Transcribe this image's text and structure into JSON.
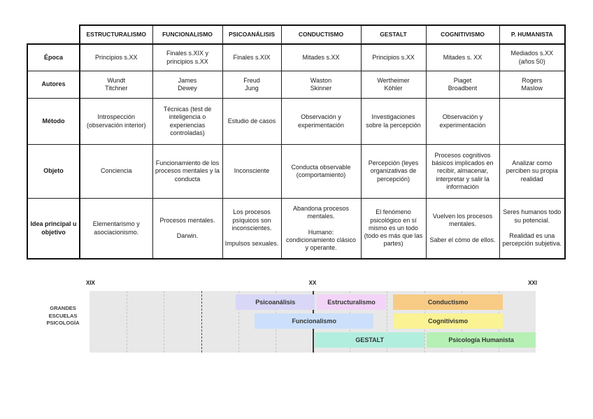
{
  "table": {
    "columns": [
      "ESTRUCTURALISMO",
      "FUNCIONALISMO",
      "PSICOANÁLISIS",
      "CONDUCTISMO",
      "GESTALT",
      "COGNITIVISMO",
      "P. HUMANISTA"
    ],
    "rows": [
      {
        "label": "Época",
        "cells": [
          "Principios s.XX",
          "Finales s.XIX y principios s.XX",
          "Finales s.XIX",
          "Mitades s.XX",
          "Principios s.XX",
          "Mitades s. XX",
          "Mediados s.XX\n(años 50)"
        ]
      },
      {
        "label": "Autores",
        "cells": [
          "Wundt\nTitchner",
          "James\nDewey",
          "Freud\nJung",
          "Waston\nSkinner",
          "Wertheimer\nKöhler",
          "Piaget\nBroadbent",
          "Rogers\nMaslow"
        ]
      },
      {
        "label": "Método",
        "cells": [
          "Introspección (observación interior)",
          "Técnicas (test de inteligencia o experiencias controladas)",
          "Estudio de casos",
          "Observación y experimentación",
          "Investigaciones sobre la percepción",
          "Observación y experimentación",
          ""
        ]
      },
      {
        "label": "Objeto",
        "cells": [
          "Conciencia",
          "Funcionamiento de los procesos mentales y la conducta",
          "Inconsciente",
          "Conducta observable (comportamiento)",
          "Percepción (leyes organizativas de percepción)",
          "Procesos cognitivos básicos implicados en recibir, almacenar, interpretar y salir la información",
          "Analizar como perciben su propia realidad"
        ]
      },
      {
        "label": "Idea principal u objetivo",
        "cells": [
          "Elementarismo y asociacionismo.",
          "Procesos mentales.\n\nDarwin.",
          "Los procesos psíquicos son inconscientes.\n\nImpulsos sexuales.",
          "Abandona procesos mentales.\n\nHumano: condicionamiento clásico y operante.",
          "El fenómeno psicológico en sí mismo es un todo (todo es más que las partes)",
          "Vuelven los procesos mentales.\n\nSaber el cómo de ellos.",
          "Seres humanos todo su potencial.\n\nRealidad es una percepción subjetiva."
        ]
      }
    ]
  },
  "timeline": {
    "left_label": "GRANDES\nESCUELAS\nPSICOLOGÍA",
    "ticks": [
      {
        "label": "XIX",
        "pos_pct": 0
      },
      {
        "label": "XX",
        "pos_pct": 50
      },
      {
        "label": "XXI",
        "pos_pct": 100
      }
    ],
    "axis": {
      "divisions": 12,
      "dark_division": 3,
      "solid_division": 6
    },
    "colors": {
      "plot_background": "#e8e8e8"
    },
    "bars": [
      {
        "id": "psicoanalisis",
        "label": "Psicoanálisis",
        "row": 0,
        "start_pct": 32.8,
        "end_pct": 50.5,
        "color": "#d9d7f7"
      },
      {
        "id": "estructuralismo",
        "label": "Estructuralismo",
        "row": 0,
        "start_pct": 50.9,
        "end_pct": 66.5,
        "color": "#f3d4f8"
      },
      {
        "id": "conductismo",
        "label": "Conductismo",
        "row": 0,
        "start_pct": 68.0,
        "end_pct": 92.7,
        "color": "#f8cb85"
      },
      {
        "id": "funcionalismo",
        "label": "Funcionalismo",
        "row": 1,
        "start_pct": 37.0,
        "end_pct": 63.7,
        "color": "#cce0fb"
      },
      {
        "id": "cognitivismo",
        "label": "Cognitivismo",
        "row": 1,
        "start_pct": 68.0,
        "end_pct": 92.7,
        "color": "#faf293"
      },
      {
        "id": "gestalt",
        "label": "GESTALT",
        "row": 2,
        "start_pct": 50.5,
        "end_pct": 75.1,
        "color": "#b2eedd"
      },
      {
        "id": "psicologia-humanista",
        "label": "Psicología Humanista",
        "row": 2,
        "start_pct": 75.6,
        "end_pct": 100,
        "color": "#b6f0b4"
      }
    ]
  },
  "chart_data": {
    "type": "bar",
    "subtype": "gantt-timeline",
    "title": "GRANDES ESCUELAS PSICOLOGÍA",
    "x_tick_labels": [
      "XIX",
      "XX",
      "XXI"
    ],
    "x_range_pct": [
      0,
      100
    ],
    "grid": "dashed vertical, solid line at XX",
    "series": [
      {
        "name": "Psicoanálisis",
        "row": 1,
        "start_pct": 32.8,
        "end_pct": 50.5
      },
      {
        "name": "Estructuralismo",
        "row": 1,
        "start_pct": 50.9,
        "end_pct": 66.5
      },
      {
        "name": "Conductismo",
        "row": 1,
        "start_pct": 68.0,
        "end_pct": 92.7
      },
      {
        "name": "Funcionalismo",
        "row": 2,
        "start_pct": 37.0,
        "end_pct": 63.7
      },
      {
        "name": "Cognitivismo",
        "row": 2,
        "start_pct": 68.0,
        "end_pct": 92.7
      },
      {
        "name": "GESTALT",
        "row": 3,
        "start_pct": 50.5,
        "end_pct": 75.1
      },
      {
        "name": "Psicología Humanista",
        "row": 3,
        "start_pct": 75.6,
        "end_pct": 100
      }
    ]
  }
}
